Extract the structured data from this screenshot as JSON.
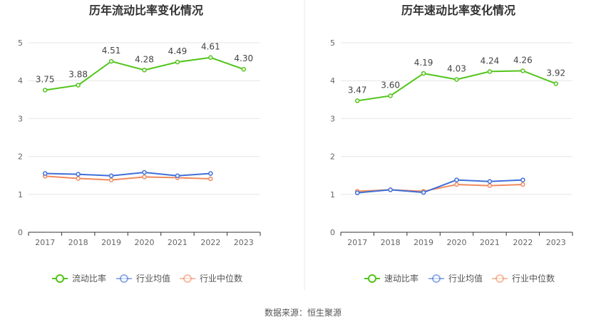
{
  "colors": {
    "primary": "#52c41a",
    "industry_avg": "#3f6fd8",
    "industry_median": "#f08a5d",
    "axis": "#333333",
    "grid": "#e6e6e6",
    "divider": "#e8e8e8"
  },
  "footer": {
    "source": "数据来源：恒生聚源"
  },
  "chart_data": [
    {
      "type": "line",
      "title": "历年流动比率变化情况",
      "categories": [
        "2017",
        "2018",
        "2019",
        "2020",
        "2021",
        "2022",
        "2023"
      ],
      "ylim": [
        0,
        5
      ],
      "yticks": [
        "0",
        "1",
        "2",
        "3",
        "4",
        "5"
      ],
      "legend_position": "bottom-center",
      "series": [
        {
          "name": "流动比率",
          "color_key": "primary",
          "values": [
            3.75,
            3.88,
            4.51,
            4.28,
            4.49,
            4.61,
            4.3
          ],
          "labels": [
            "3.75",
            "3.88",
            "4.51",
            "4.28",
            "4.49",
            "4.61",
            "4.30"
          ]
        },
        {
          "name": "行业均值",
          "color_key": "industry_avg",
          "values": [
            1.55,
            1.53,
            1.49,
            1.58,
            1.49,
            1.55,
            null
          ]
        },
        {
          "name": "行业中位数",
          "color_key": "industry_median",
          "values": [
            1.48,
            1.42,
            1.38,
            1.46,
            1.44,
            1.41,
            null
          ]
        }
      ]
    },
    {
      "type": "line",
      "title": "历年速动比率变化情况",
      "categories": [
        "2017",
        "2018",
        "2019",
        "2020",
        "2021",
        "2022",
        "2023"
      ],
      "ylim": [
        0,
        5
      ],
      "yticks": [
        "0",
        "1",
        "2",
        "3",
        "4",
        "5"
      ],
      "legend_position": "bottom-center",
      "series": [
        {
          "name": "速动比率",
          "color_key": "primary",
          "values": [
            3.47,
            3.6,
            4.19,
            4.03,
            4.24,
            4.26,
            3.92
          ],
          "labels": [
            "3.47",
            "3.60",
            "4.19",
            "4.03",
            "4.24",
            "4.26",
            "3.92"
          ]
        },
        {
          "name": "行业均值",
          "color_key": "industry_avg",
          "values": [
            1.04,
            1.12,
            1.05,
            1.38,
            1.34,
            1.38,
            null
          ]
        },
        {
          "name": "行业中位数",
          "color_key": "industry_median",
          "values": [
            1.08,
            1.12,
            1.08,
            1.26,
            1.23,
            1.26,
            null
          ]
        }
      ]
    }
  ]
}
